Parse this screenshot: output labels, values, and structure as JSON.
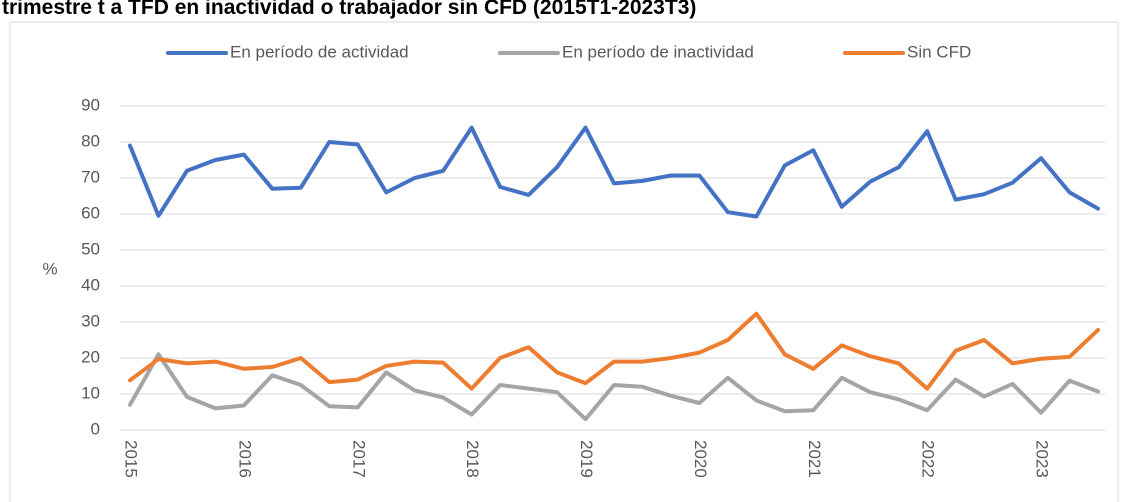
{
  "chart_data": {
    "type": "line",
    "title": "trimestre t a TFD en inactividad o trabajador sin CFD (2015T1-2023T3)",
    "y_label": "%",
    "categories": [
      "2015",
      null,
      null,
      null,
      "2016",
      null,
      null,
      null,
      "2017",
      null,
      null,
      null,
      "2018",
      null,
      null,
      null,
      "2019",
      null,
      null,
      null,
      "2020",
      null,
      null,
      null,
      "2021",
      null,
      null,
      null,
      "2022",
      null,
      null,
      null,
      "2023",
      null,
      null
    ],
    "series": [
      {
        "name": "En período de actividad",
        "color": "#4472c4",
        "values": [
          79,
          59.5,
          72,
          75,
          76.5,
          67,
          67.3,
          80,
          79.3,
          66,
          70,
          72,
          84,
          67.5,
          65.3,
          73,
          84,
          68.5,
          69.2,
          70.7,
          70.7,
          60.5,
          59.3,
          73.5,
          77.7,
          62,
          69,
          73,
          83,
          64,
          65.5,
          68.7,
          75.5,
          66,
          61.5
        ]
      },
      {
        "name": "En período de inactividad",
        "color": "#a5a5a5",
        "values": [
          7,
          21,
          9.2,
          6,
          6.8,
          15.2,
          12.5,
          6.6,
          6.3,
          16,
          11,
          9,
          4.3,
          12.5,
          11.5,
          10.5,
          3,
          12.5,
          12,
          9.5,
          7.5,
          14.5,
          8.2,
          5.2,
          5.5,
          14.5,
          10.5,
          8.5,
          5.5,
          14,
          9.3,
          12.8,
          4.8,
          13.7,
          10.7
        ]
      },
      {
        "name": "Sin CFD",
        "color": "#ed7d31",
        "values": [
          13.8,
          19.7,
          18.5,
          19,
          17,
          17.5,
          20,
          13.3,
          14,
          17.8,
          19,
          18.7,
          11.5,
          20,
          23,
          16,
          13,
          19,
          19,
          20,
          21.5,
          25,
          32.3,
          21,
          17,
          23.5,
          20.5,
          18.5,
          11.5,
          22,
          25,
          18.5,
          19.8,
          20.3,
          27.8
        ]
      }
    ],
    "ylim": [
      0,
      90
    ],
    "yticks": [
      0,
      10,
      20,
      30,
      40,
      50,
      60,
      70,
      80,
      90
    ],
    "grid": true,
    "legend": "top"
  }
}
